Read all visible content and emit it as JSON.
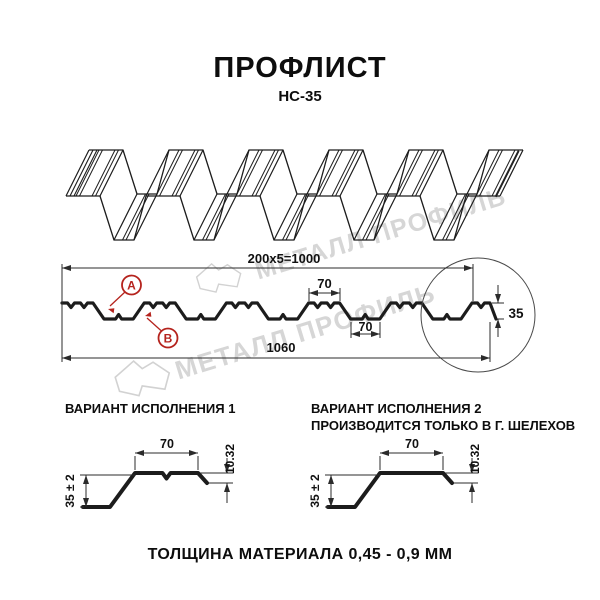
{
  "title": "ПРОФЛИСТ",
  "subtitle": "НС-35",
  "watermark": {
    "text": "МЕТАЛЛ ПРОФИЛЬ",
    "color": "#d6d6d6"
  },
  "colors": {
    "line": "#1c1c1c",
    "dim": "#2b2b2b",
    "callout": "#b5231d"
  },
  "main_drawing": {
    "dim_coverage": "200x5=1000",
    "dim_overall": "1060",
    "dim_rib_top": "70",
    "dim_rib_bottom": "70",
    "dim_height": "35",
    "callout_a": "A",
    "callout_b": "B"
  },
  "variants": [
    {
      "heading": "ВАРИАНТ ИСПОЛНЕНИЯ 1",
      "subheading": "",
      "dim_top": "70",
      "dim_height": "35 ± 2",
      "dim_edge": "10.32"
    },
    {
      "heading": "ВАРИАНТ ИСПОЛНЕНИЯ 2",
      "subheading": "ПРОИЗВОДИТСЯ ТОЛЬКО В Г. ШЕЛЕХОВ",
      "dim_top": "70",
      "dim_height": "35 ± 2",
      "dim_edge": "10.32"
    }
  ],
  "footer": "ТОЛЩИНА МАТЕРИАЛА 0,45 - 0,9 ММ"
}
